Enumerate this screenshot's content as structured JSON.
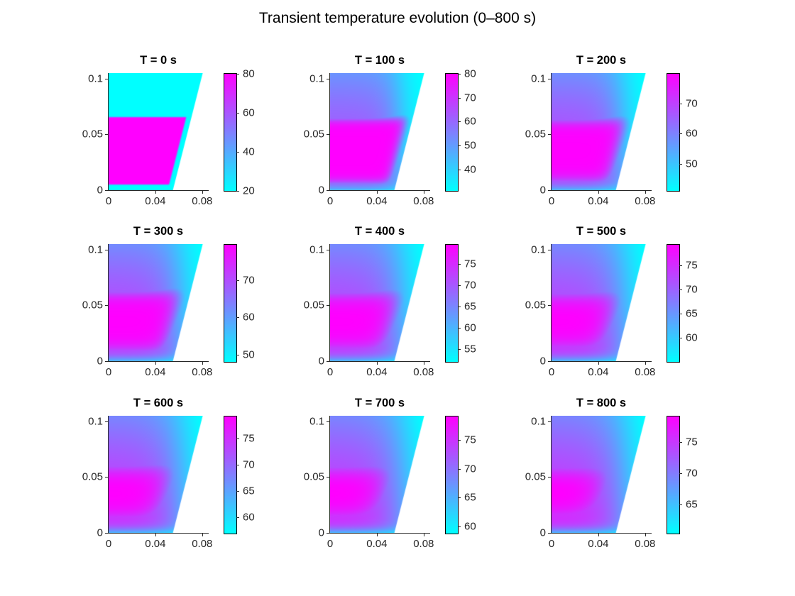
{
  "figure": {
    "title": "Transient temperature evolution (0–800 s)",
    "background": "#ffffff"
  },
  "colors": {
    "axis": "#262626",
    "title_text": "#000000",
    "colormap_name": "cool",
    "colormap_min": "#00ffff",
    "colormap_max": "#ff00ff"
  },
  "axes": {
    "xlim": [
      0,
      0.085
    ],
    "ylim": [
      0,
      0.105
    ],
    "x_ticks": [
      "0",
      "0.04",
      "0.08"
    ],
    "x_tick_values": [
      0,
      0.04,
      0.08
    ],
    "y_ticks": [
      "0",
      "0.05",
      "0.1"
    ],
    "y_tick_values": [
      0,
      0.05,
      0.1
    ]
  },
  "chart_data": {
    "type": "heatmap",
    "title": "Transient temperature evolution (0–800 s)",
    "layout": "3x3 subplots, each with colorbar",
    "domain_vertices": [
      [
        0,
        0
      ],
      [
        0.055,
        0
      ],
      [
        0.0805,
        0.105
      ],
      [
        0,
        0.105
      ]
    ],
    "hot_block": {
      "x_range": [
        0,
        0.066
      ],
      "y_range": [
        0.005,
        0.0655
      ],
      "slant_offset": 0.0045,
      "initial_temp": 80,
      "ambient_temp": 20
    },
    "frames": [
      {
        "label": "T = 0 s",
        "time_s": 0,
        "caxis": [
          20,
          80
        ],
        "colorbar_ticks": [
          {
            "label": "20",
            "value": 20
          },
          {
            "label": "40",
            "value": 40
          },
          {
            "label": "60",
            "value": 60
          },
          {
            "label": "80",
            "value": 80
          }
        ],
        "render": {
          "s": 0.0006,
          "m": 0,
          "xc": 0.059,
          "wx": 0.008,
          "yc": 0.118,
          "wy": 0.03,
          "off": 0.0045
        }
      },
      {
        "label": "T = 100 s",
        "time_s": 100,
        "caxis": [
          31,
          80
        ],
        "colorbar_ticks": [
          {
            "label": "40",
            "value": 40
          },
          {
            "label": "50",
            "value": 50
          },
          {
            "label": "60",
            "value": 60
          },
          {
            "label": "70",
            "value": 70
          },
          {
            "label": "80",
            "value": 80
          }
        ],
        "render": {
          "s": 0.006,
          "m": 0.72,
          "xc": 0.059,
          "wx": 0.008,
          "yc": 0.118,
          "wy": 0.03,
          "off": 0.005
        }
      },
      {
        "label": "T = 200 s",
        "time_s": 200,
        "caxis": [
          41,
          79.8
        ],
        "colorbar_ticks": [
          {
            "label": "50",
            "value": 50
          },
          {
            "label": "60",
            "value": 60
          },
          {
            "label": "70",
            "value": 70
          }
        ],
        "render": {
          "s": 0.0085,
          "m": 0.78,
          "xc": 0.06,
          "wx": 0.009,
          "yc": 0.118,
          "wy": 0.032,
          "off": 0.006
        }
      },
      {
        "label": "T = 300 s",
        "time_s": 300,
        "caxis": [
          48,
          79.6
        ],
        "colorbar_ticks": [
          {
            "label": "50",
            "value": 50
          },
          {
            "label": "60",
            "value": 60
          },
          {
            "label": "70",
            "value": 70
          }
        ],
        "render": {
          "s": 0.0105,
          "m": 0.81,
          "xc": 0.061,
          "wx": 0.01,
          "yc": 0.119,
          "wy": 0.034,
          "off": 0.007
        }
      },
      {
        "label": "T = 400 s",
        "time_s": 400,
        "caxis": [
          52,
          79.4
        ],
        "colorbar_ticks": [
          {
            "label": "55",
            "value": 55
          },
          {
            "label": "60",
            "value": 60
          },
          {
            "label": "65",
            "value": 65
          },
          {
            "label": "70",
            "value": 70
          },
          {
            "label": "75",
            "value": 75
          }
        ],
        "render": {
          "s": 0.0125,
          "m": 0.83,
          "xc": 0.061,
          "wx": 0.0105,
          "yc": 0.119,
          "wy": 0.036,
          "off": 0.008
        }
      },
      {
        "label": "T = 500 s",
        "time_s": 500,
        "caxis": [
          55,
          79.3
        ],
        "colorbar_ticks": [
          {
            "label": "60",
            "value": 60
          },
          {
            "label": "65",
            "value": 65
          },
          {
            "label": "70",
            "value": 70
          },
          {
            "label": "75",
            "value": 75
          }
        ],
        "render": {
          "s": 0.014,
          "m": 0.85,
          "xc": 0.062,
          "wx": 0.011,
          "yc": 0.119,
          "wy": 0.038,
          "off": 0.0095
        }
      },
      {
        "label": "T = 600 s",
        "time_s": 600,
        "caxis": [
          56.9,
          79.2
        ],
        "colorbar_ticks": [
          {
            "label": "60",
            "value": 60
          },
          {
            "label": "65",
            "value": 65
          },
          {
            "label": "70",
            "value": 70
          },
          {
            "label": "75",
            "value": 75
          }
        ],
        "render": {
          "s": 0.0155,
          "m": 0.86,
          "xc": 0.062,
          "wx": 0.0115,
          "yc": 0.12,
          "wy": 0.04,
          "off": 0.011
        }
      },
      {
        "label": "T = 700 s",
        "time_s": 700,
        "caxis": [
          58.7,
          79.1
        ],
        "colorbar_ticks": [
          {
            "label": "60",
            "value": 60
          },
          {
            "label": "65",
            "value": 65
          },
          {
            "label": "70",
            "value": 70
          },
          {
            "label": "75",
            "value": 75
          }
        ],
        "render": {
          "s": 0.017,
          "m": 0.87,
          "xc": 0.063,
          "wx": 0.012,
          "yc": 0.12,
          "wy": 0.042,
          "off": 0.0125
        }
      },
      {
        "label": "T = 800 s",
        "time_s": 800,
        "caxis": [
          60.4,
          79.0
        ],
        "colorbar_ticks": [
          {
            "label": "65",
            "value": 65
          },
          {
            "label": "70",
            "value": 70
          },
          {
            "label": "75",
            "value": 75
          }
        ],
        "render": {
          "s": 0.0185,
          "m": 0.88,
          "xc": 0.063,
          "wx": 0.012,
          "yc": 0.12,
          "wy": 0.044,
          "off": 0.014
        }
      }
    ]
  }
}
